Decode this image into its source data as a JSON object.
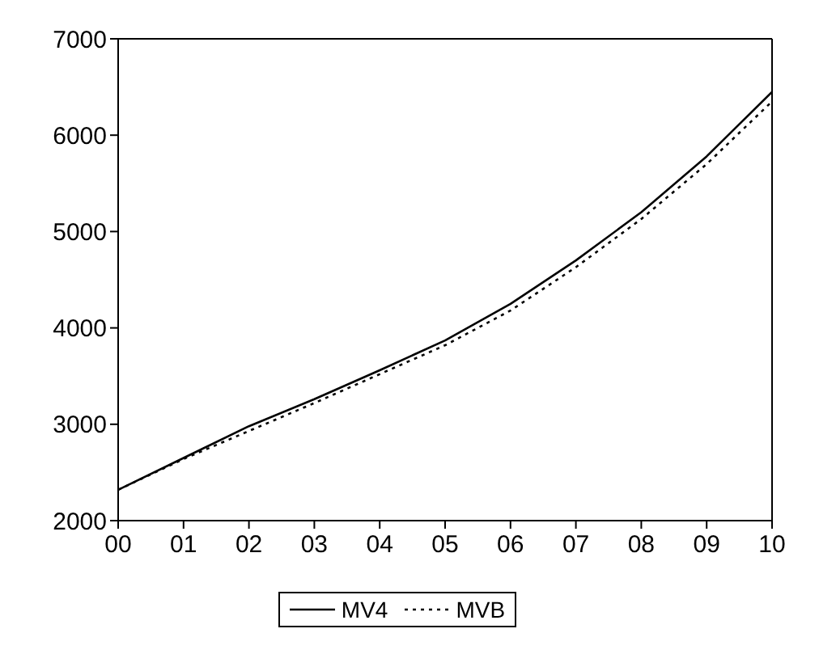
{
  "chart_data": {
    "type": "line",
    "x": [
      0,
      1,
      2,
      3,
      4,
      5,
      6,
      7,
      8,
      9,
      10
    ],
    "series": [
      {
        "name": "MV4",
        "color": "#000000",
        "line_style": "solid",
        "values": [
          2320,
          2650,
          2980,
          3260,
          3560,
          3870,
          4250,
          4700,
          5200,
          5780,
          6450
        ]
      },
      {
        "name": "MVB",
        "color": "#000000",
        "line_style": "dotted",
        "values": [
          2320,
          2640,
          2930,
          3220,
          3520,
          3820,
          4180,
          4630,
          5130,
          5700,
          6350
        ]
      }
    ],
    "xlim": [
      0,
      10
    ],
    "xticks": [
      {
        "value": 0,
        "label": "00"
      },
      {
        "value": 1,
        "label": "01"
      },
      {
        "value": 2,
        "label": "02"
      },
      {
        "value": 3,
        "label": "03"
      },
      {
        "value": 4,
        "label": "04"
      },
      {
        "value": 5,
        "label": "05"
      },
      {
        "value": 6,
        "label": "06"
      },
      {
        "value": 7,
        "label": "07"
      },
      {
        "value": 8,
        "label": "08"
      },
      {
        "value": 9,
        "label": "09"
      },
      {
        "value": 10,
        "label": "10"
      }
    ],
    "ylim": [
      2000,
      7000
    ],
    "yticks": [
      2000,
      3000,
      4000,
      5000,
      6000,
      7000
    ],
    "grid": false,
    "legend": "bottom",
    "marker": "none"
  }
}
